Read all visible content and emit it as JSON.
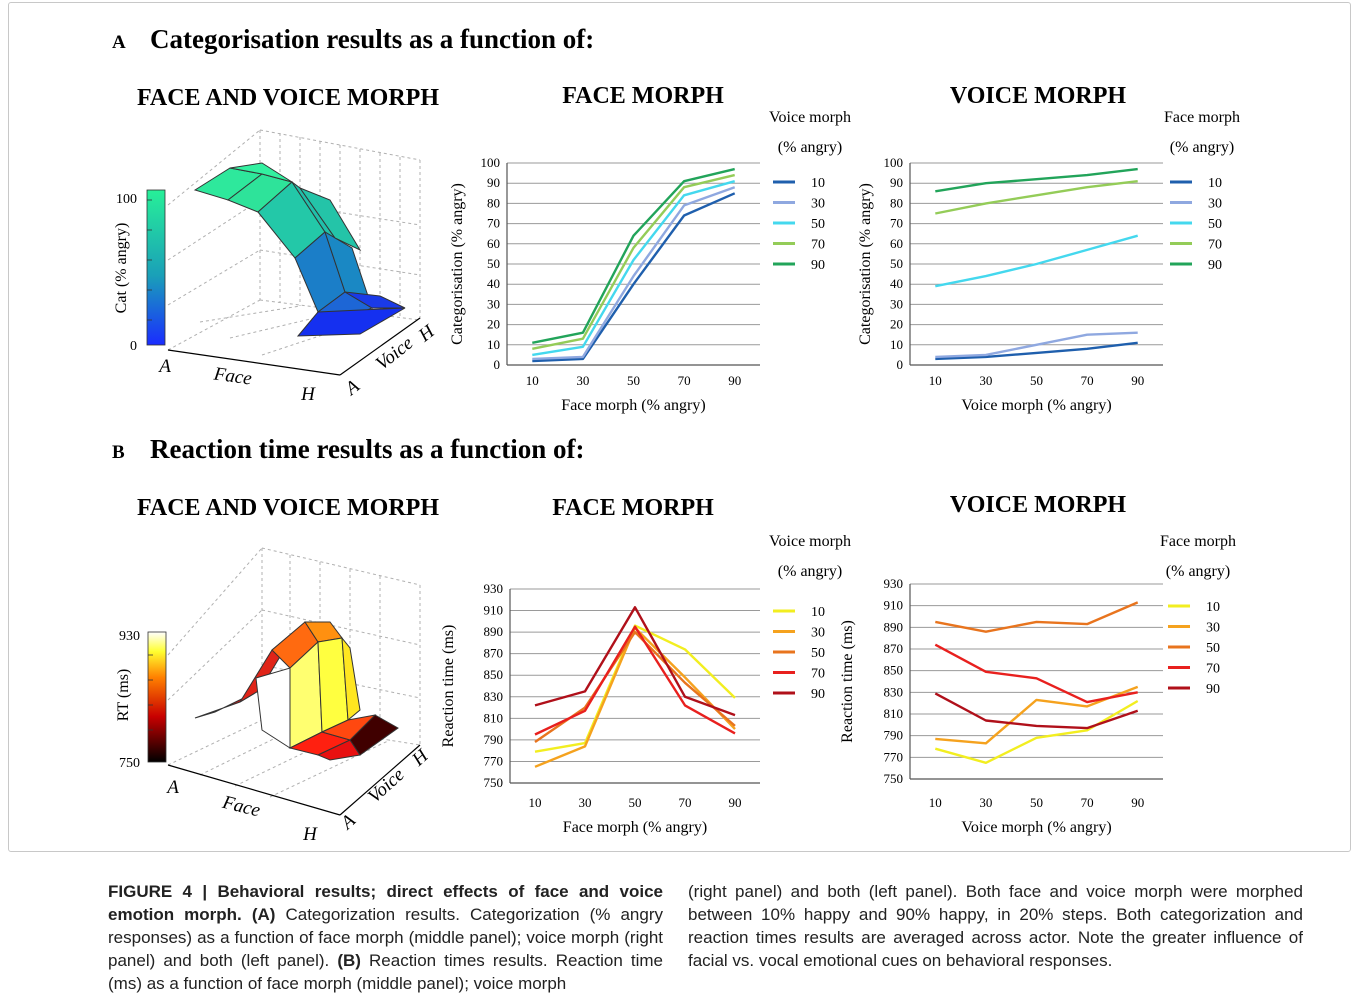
{
  "sections": [
    {
      "letter": "A",
      "title": "Categorisation results as a function of:"
    },
    {
      "letter": "B",
      "title": "Reaction time results as a function of:"
    }
  ],
  "panel_titles": {
    "fv": "FACE AND VOICE MORPH",
    "face": "FACE MORPH",
    "voice": "VOICE MORPH"
  },
  "surface_labels": {
    "face_axis": "Face",
    "voice_axis": "Voice",
    "a": "A",
    "h": "H",
    "cat_colorbar_label": "Cat (% angry)",
    "cat_colorbar_ticks": [
      "100",
      "0"
    ],
    "rt_colorbar_label": "RT (ms)",
    "rt_colorbar_ticks": [
      "930",
      "750"
    ]
  },
  "colors": {
    "cat_series": [
      "#1f5fad",
      "#8fa8e0",
      "#44d8ee",
      "#94cc58",
      "#22a45a"
    ],
    "rt_series": [
      "#f2ee20",
      "#f5a21e",
      "#e8741e",
      "#e8201e",
      "#b0101a"
    ]
  },
  "chart_data": [
    {
      "id": "cat_face",
      "type": "line",
      "xlabel": "Face morph (% angry)",
      "ylabel": "Categorisation (% angry)",
      "x": [
        10,
        30,
        50,
        70,
        90
      ],
      "ylim": [
        0,
        100
      ],
      "yticks": [
        0,
        10,
        20,
        30,
        40,
        50,
        60,
        70,
        80,
        90,
        100
      ],
      "legend_title": [
        "Voice morph",
        "(% angry)"
      ],
      "legend_position": "right",
      "grid": true,
      "series": [
        {
          "name": "10",
          "values": [
            2,
            3,
            40,
            74,
            85
          ]
        },
        {
          "name": "30",
          "values": [
            3,
            4,
            44,
            79,
            88
          ]
        },
        {
          "name": "50",
          "values": [
            5,
            9,
            52,
            84,
            91
          ]
        },
        {
          "name": "70",
          "values": [
            8,
            13,
            58,
            88,
            94
          ]
        },
        {
          "name": "90",
          "values": [
            11,
            16,
            64,
            91,
            97
          ]
        }
      ]
    },
    {
      "id": "cat_voice",
      "type": "line",
      "xlabel": "Voice morph (% angry)",
      "ylabel": "Categorisation (% angry)",
      "x": [
        10,
        30,
        50,
        70,
        90
      ],
      "ylim": [
        0,
        100
      ],
      "yticks": [
        0,
        10,
        20,
        30,
        40,
        50,
        60,
        70,
        80,
        90,
        100
      ],
      "legend_title": [
        "Face morph",
        "(% angry)"
      ],
      "legend_position": "right",
      "grid": true,
      "series": [
        {
          "name": "10",
          "values": [
            3,
            4,
            6,
            8,
            11
          ]
        },
        {
          "name": "30",
          "values": [
            4,
            5,
            10,
            15,
            16
          ]
        },
        {
          "name": "50",
          "values": [
            39,
            44,
            50,
            57,
            64
          ]
        },
        {
          "name": "70",
          "values": [
            75,
            80,
            84,
            88,
            91
          ]
        },
        {
          "name": "90",
          "values": [
            86,
            90,
            92,
            94,
            97
          ]
        }
      ]
    },
    {
      "id": "rt_face",
      "type": "line",
      "xlabel": "Face morph (% angry)",
      "ylabel": "Reaction time (ms)",
      "x": [
        10,
        30,
        50,
        70,
        90
      ],
      "ylim": [
        750,
        930
      ],
      "yticks": [
        750,
        770,
        790,
        810,
        830,
        850,
        870,
        890,
        910,
        930
      ],
      "legend_title": [
        "Voice morph",
        "(% angry)"
      ],
      "legend_position": "right",
      "grid": true,
      "series": [
        {
          "name": "10",
          "values": [
            779,
            787,
            896,
            874,
            829
          ]
        },
        {
          "name": "30",
          "values": [
            765,
            784,
            894,
            848,
            800
          ]
        },
        {
          "name": "50",
          "values": [
            788,
            820,
            890,
            843,
            803
          ]
        },
        {
          "name": "70",
          "values": [
            795,
            817,
            895,
            822,
            796
          ]
        },
        {
          "name": "90",
          "values": [
            822,
            835,
            913,
            830,
            813
          ]
        }
      ]
    },
    {
      "id": "rt_voice",
      "type": "line",
      "xlabel": "Voice morph (% angry)",
      "ylabel": "Reaction time (ms)",
      "x": [
        10,
        30,
        50,
        70,
        90
      ],
      "ylim": [
        750,
        930
      ],
      "yticks": [
        750,
        770,
        790,
        810,
        830,
        850,
        870,
        890,
        910,
        930
      ],
      "legend_title": [
        "Face morph",
        "(% angry)"
      ],
      "legend_position": "right",
      "grid": true,
      "series": [
        {
          "name": "10",
          "values": [
            778,
            765,
            788,
            795,
            822
          ]
        },
        {
          "name": "30",
          "values": [
            787,
            783,
            823,
            817,
            835
          ]
        },
        {
          "name": "50",
          "values": [
            895,
            886,
            895,
            893,
            913
          ]
        },
        {
          "name": "70",
          "values": [
            874,
            849,
            843,
            821,
            830
          ]
        },
        {
          "name": "90",
          "values": [
            829,
            804,
            799,
            797,
            813
          ]
        }
      ]
    }
  ],
  "caption": {
    "heading": "FIGURE 4 | Behavioral results; direct effects of face and voice emotion morph.",
    "a_label": "(A)",
    "a_text": " Categorization results. Categorization (% angry responses) as a function of face morph (middle panel); voice morph (right panel) and both (left panel).",
    "b_label": "(B)",
    "b_text": " Reaction times results. Reaction time (ms) as a function of face morph (middle panel); voice morph",
    "right_text": "(right panel) and both (left panel). Both face and voice morph were morphed between 10% happy and 90% happy, in 20% steps. Both categorization and reaction times results are averaged across actor. Note the greater influence of facial vs. vocal emotional cues on behavioral responses."
  }
}
